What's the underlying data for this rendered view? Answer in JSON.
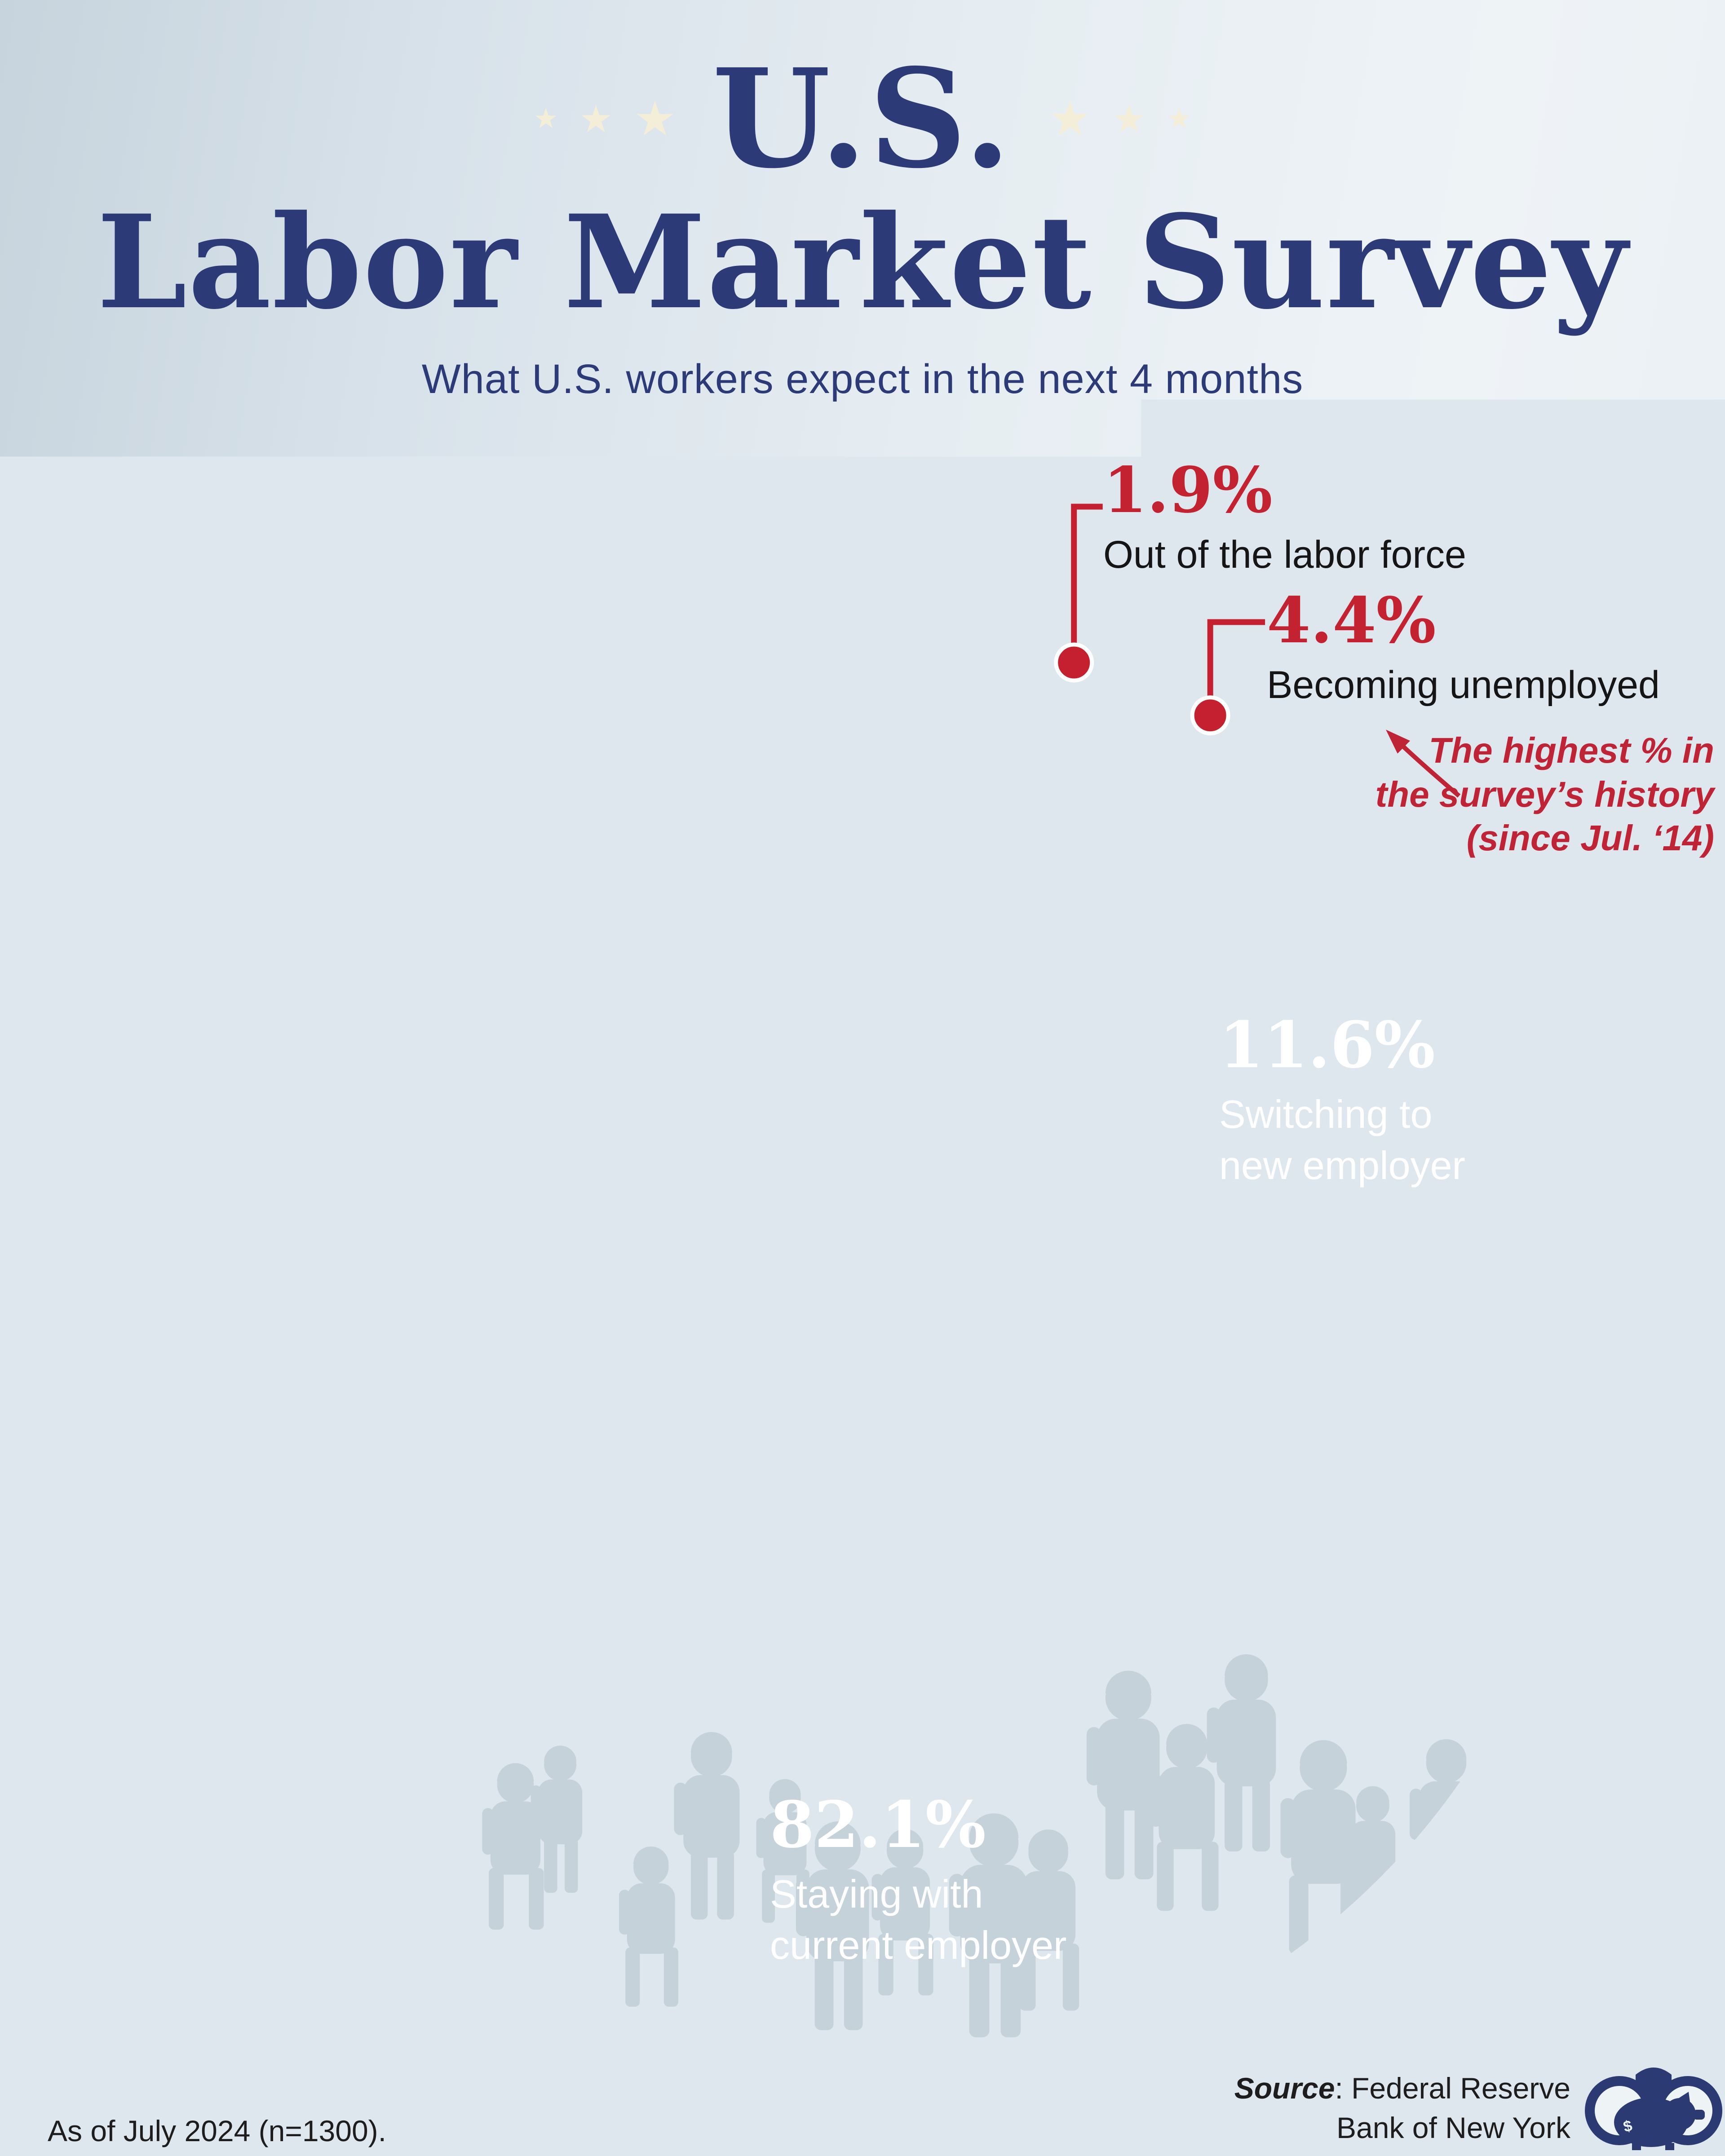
{
  "header": {
    "star": "★",
    "title_line1": "U.S.",
    "title_line2": "Labor Market Survey",
    "subtitle": "What U.S. workers expect in the next 4 months"
  },
  "chart_data": {
    "type": "pie",
    "subtype": "donut",
    "title": "U.S. Labor Market Survey",
    "subtitle": "What U.S. workers expect in the next 4 months",
    "unit": "percent",
    "hole_ratio": 0.47,
    "start_angle_deg": 12.1,
    "rotation": "clockwise",
    "legend_position": "on-chart",
    "slices": [
      {
        "label": "Out of the labor force",
        "value": 1.9,
        "display": "1.9%",
        "colors": [
          "#e35f58",
          "#c21f2f"
        ],
        "exploded": true,
        "label_style": "callout"
      },
      {
        "label": "Becoming unemployed",
        "value": 4.4,
        "display": "4.4%",
        "colors": [
          "#e35f58",
          "#c21f2f"
        ],
        "exploded": true,
        "label_style": "callout",
        "annotation": "The highest % in the survey’s history (since Jul. ‘14)"
      },
      {
        "label": "Switching to new employer",
        "value": 11.6,
        "display": "11.6%",
        "colors": [
          "#4a5589",
          "#222d60"
        ],
        "exploded": false,
        "label_style": "inside"
      },
      {
        "label": "Staying with current employer",
        "value": 82.1,
        "display": "82.1%",
        "colors": [
          "#bfccd2",
          "#abbec6"
        ],
        "exploded": false,
        "label_style": "inside"
      }
    ]
  },
  "annotation": {
    "line1": "The highest % in",
    "line2": "the survey’s history",
    "line3": "(since Jul. ‘14)"
  },
  "inside_labels": {
    "switching_l1": "Switching to",
    "switching_l2": "new employer",
    "staying_l1": "Staying with",
    "staying_l2": "current employer"
  },
  "footer": {
    "note": "As of July 2024 (n=1300).",
    "source_label": "Source",
    "source_rest": ": Federal Reserve",
    "source_line2": "Bank of New York"
  },
  "logo": {
    "name": "binoculars-piggy-bank-logo",
    "color": "#2b3a72",
    "currency_symbol": "$"
  },
  "colors": {
    "background_left": "#c7d4dd",
    "background_right": "#eef3f6",
    "title": "#2c3b78",
    "star": "#f4edd8",
    "accent_red": "#c5202f",
    "text_dark": "#151515",
    "hole": "#dde9ee",
    "label_light": "#ffffff",
    "shadow": "#bcc9d4",
    "silhouette": "#7f98a2"
  },
  "illustration": {
    "name": "isometric-crowd-of-workers",
    "outfits": [
      {
        "top": "#16305e",
        "bottom": "#122647",
        "skin": "#f0b491",
        "hair": "#20242e"
      },
      {
        "top": "#1e88a8",
        "bottom": "#156a83",
        "skin": "#8a5436",
        "hair": "#141821"
      },
      {
        "top": "#eef3f7",
        "bottom": "#1c3461",
        "skin": "#f0b491",
        "hair": "#6b4a2f"
      },
      {
        "top": "#2196d6",
        "bottom": "#16305e",
        "skin": "#c98f68",
        "hair": "#2a2e38"
      },
      {
        "top": "#f6a623",
        "bottom": "#8a4a2a",
        "skin": "#f0b491",
        "hair": "#f2c34c"
      },
      {
        "top": "#fafcfd",
        "bottom": "#e05449",
        "skin": "#8a5436",
        "hair": "#f5f7f9"
      },
      {
        "top": "#d9534f",
        "bottom": "#1c3461",
        "skin": "#f3c6a5",
        "hair": "#3a2a1d"
      },
      {
        "top": "#5d5a9c",
        "bottom": "#39415a",
        "skin": "#e8b08e",
        "hair": "#23242d"
      },
      {
        "top": "#49c2c9",
        "bottom": "#2d8e98",
        "skin": "#f3c6a5",
        "hair": "#20242e"
      },
      {
        "top": "#3b5a8f",
        "bottom": "#26406b",
        "skin": "#8a5436",
        "hair": "#141821"
      },
      {
        "top": "#8fc1de",
        "bottom": "#3a5a86",
        "skin": "#f0b491",
        "hair": "#b5762f"
      },
      {
        "top": "#f2f6f8",
        "bottom": "#2b4a78",
        "skin": "#c98f68",
        "hair": "#2a2e38"
      },
      {
        "top": "#e8b54a",
        "bottom": "#6b4326",
        "skin": "#f3c6a5",
        "hair": "#20242e"
      },
      {
        "top": "#274a8f",
        "bottom": "#1b3566",
        "skin": "#e8b08e",
        "hair": "#3a2a1d"
      }
    ],
    "ghost_tones": [
      {
        "top": "#c2d2dc",
        "bottom": "#aebfcb"
      },
      {
        "top": "#cdd9e1",
        "bottom": "#b7c7d1"
      },
      {
        "top": "#b3c6d1",
        "bottom": "#9fb3c0"
      },
      {
        "top": "#d8cfae",
        "bottom": "#bfb38e"
      },
      {
        "top": "#cfb3b3",
        "bottom": "#b39a9a"
      },
      {
        "top": "#aac7cb",
        "bottom": "#8fb0b5"
      },
      {
        "top": "#c7cfe0",
        "bottom": "#aab4cc"
      }
    ]
  }
}
